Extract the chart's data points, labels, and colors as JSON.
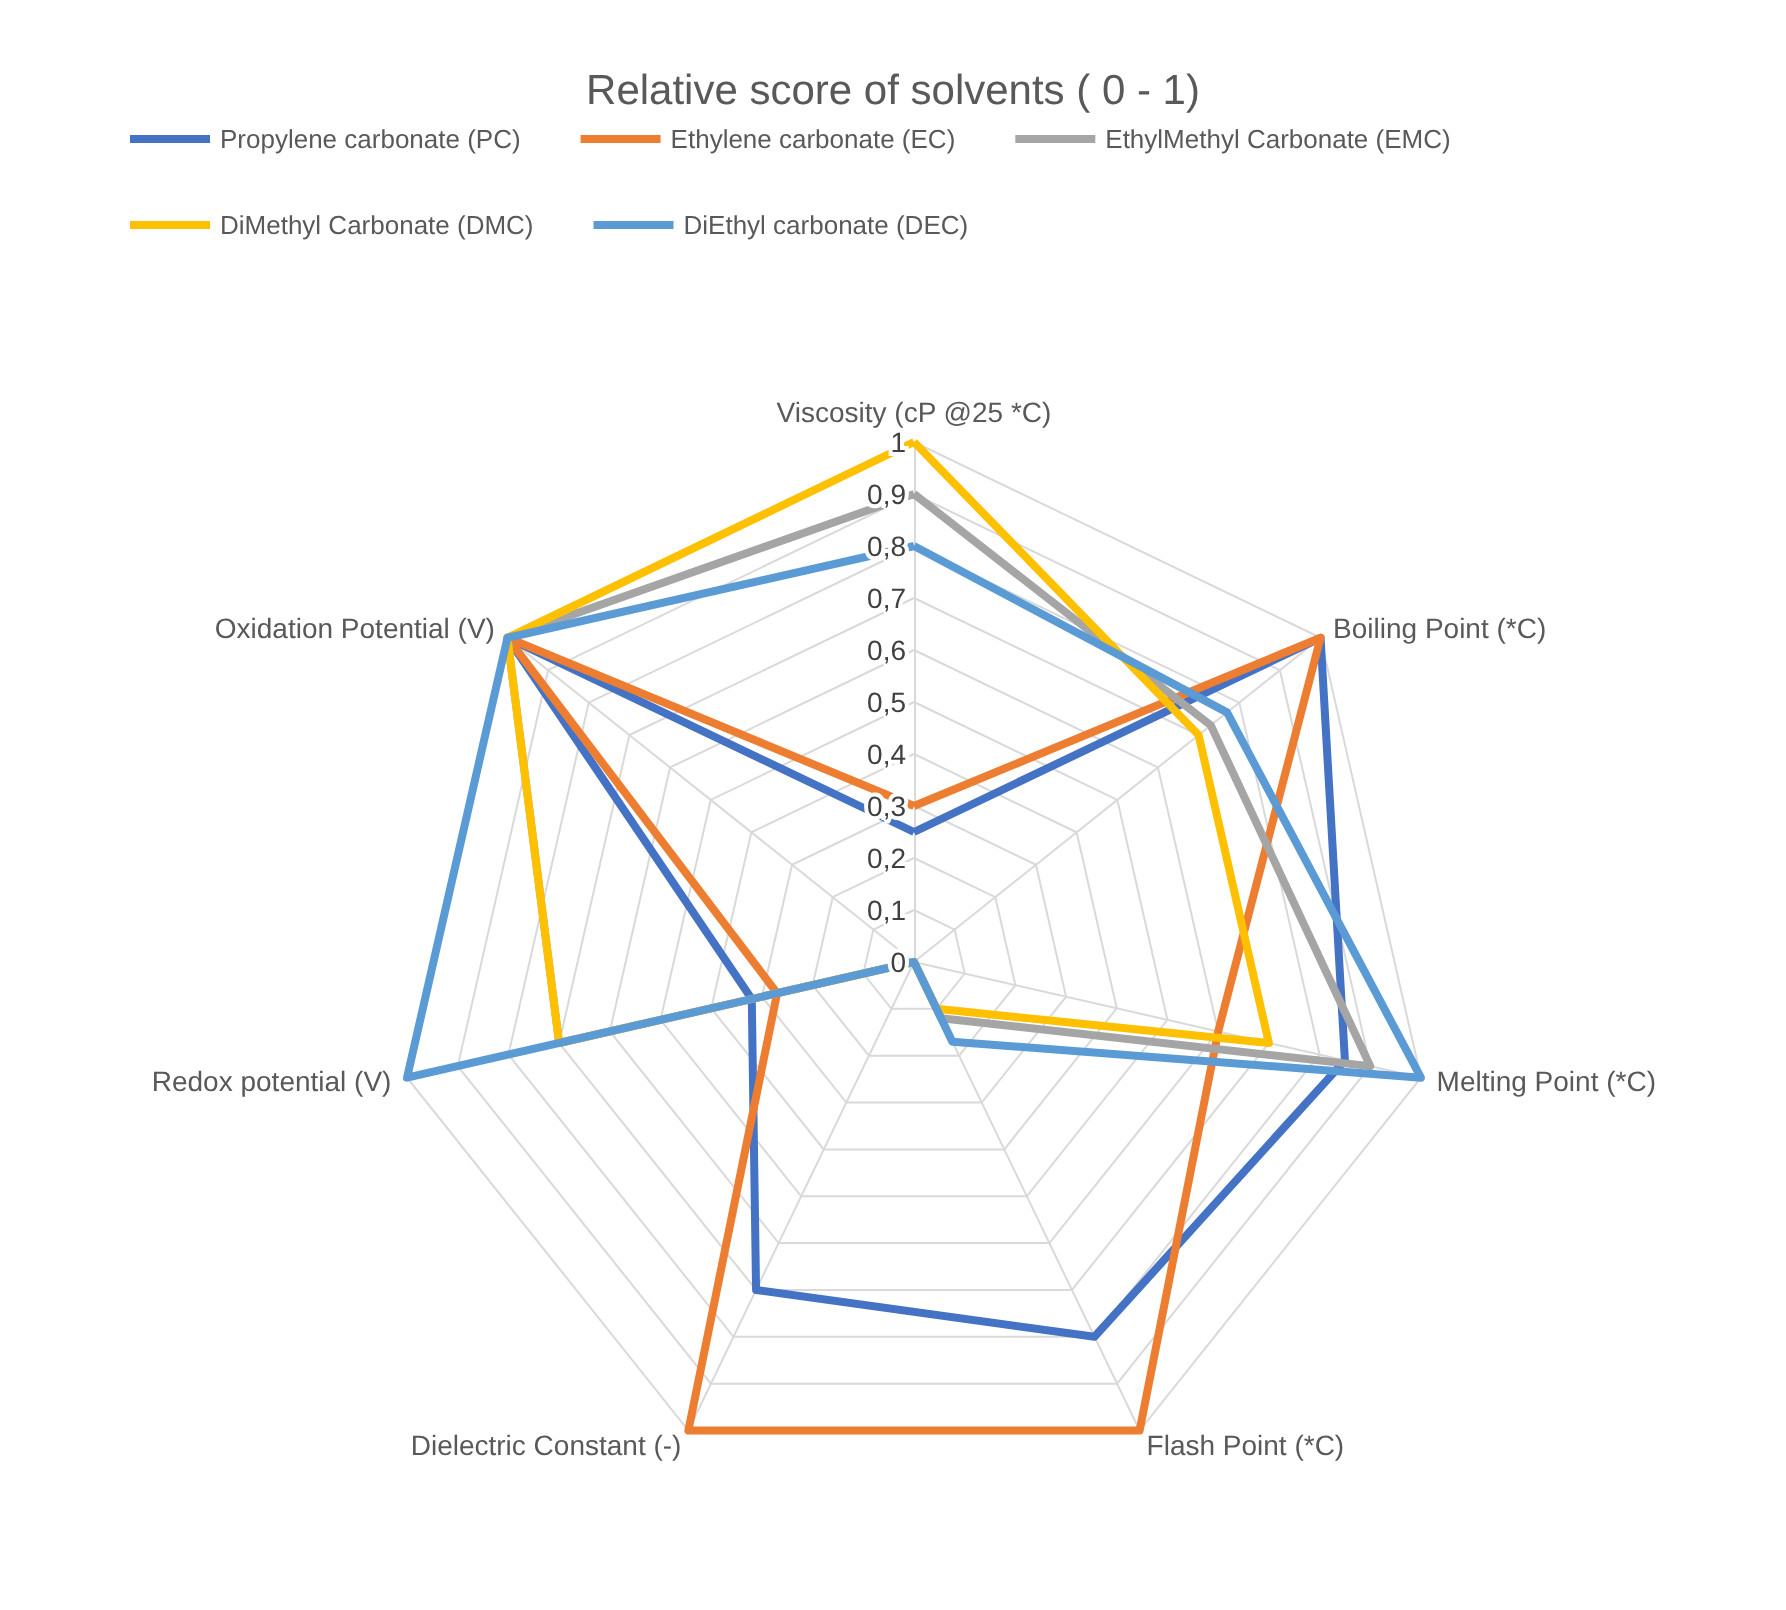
{
  "chart_data": {
    "type": "radar",
    "title": "Relative score of solvents ( 0 - 1)",
    "categories": [
      "Viscosity (cP @25 *C)",
      "Boiling Point (*C)",
      "Melting Point (*C)",
      "Flash Point (*C)",
      "Dielectric Constant (-)",
      "Redox potential (V)",
      "Oxidation Potential (V)"
    ],
    "series": [
      {
        "name": "Propylene carbonate (PC)",
        "color": "#4472c4",
        "values": [
          0.25,
          1,
          0.85,
          0.8,
          0.7,
          0.32,
          1
        ]
      },
      {
        "name": "Ethylene carbonate (EC)",
        "color": "#ed7d31",
        "values": [
          0.3,
          1,
          0.6,
          1,
          1,
          0.27,
          1
        ]
      },
      {
        "name": "EthylMethyl Carbonate (EMC)",
        "color": "#a5a5a5",
        "values": [
          0.9,
          0.73,
          0.9,
          0.12,
          0,
          0.7,
          1
        ]
      },
      {
        "name": "DiMethyl Carbonate (DMC)",
        "color": "#ffc000",
        "values": [
          1,
          0.7,
          0.7,
          0.1,
          0,
          0.7,
          1
        ]
      },
      {
        "name": "DiEthyl carbonate (DEC)",
        "color": "#5b9bd5",
        "values": [
          0.8,
          0.77,
          1,
          0.17,
          0,
          1,
          1
        ]
      }
    ],
    "ylim": [
      0,
      1
    ],
    "yticks": [
      {
        "value": 0,
        "label": "0"
      },
      {
        "value": 0.1,
        "label": "0,1"
      },
      {
        "value": 0.2,
        "label": "0,2"
      },
      {
        "value": 0.3,
        "label": "0,3"
      },
      {
        "value": 0.4,
        "label": "0,4"
      },
      {
        "value": 0.5,
        "label": "0,5"
      },
      {
        "value": 0.6,
        "label": "0,6"
      },
      {
        "value": 0.7,
        "label": "0,7"
      },
      {
        "value": 0.8,
        "label": "0,8"
      },
      {
        "value": 0.9,
        "label": "0,9"
      },
      {
        "value": 1,
        "label": "1"
      }
    ],
    "grid": true,
    "legend": "top",
    "marker": "none",
    "line_style": "solid"
  }
}
